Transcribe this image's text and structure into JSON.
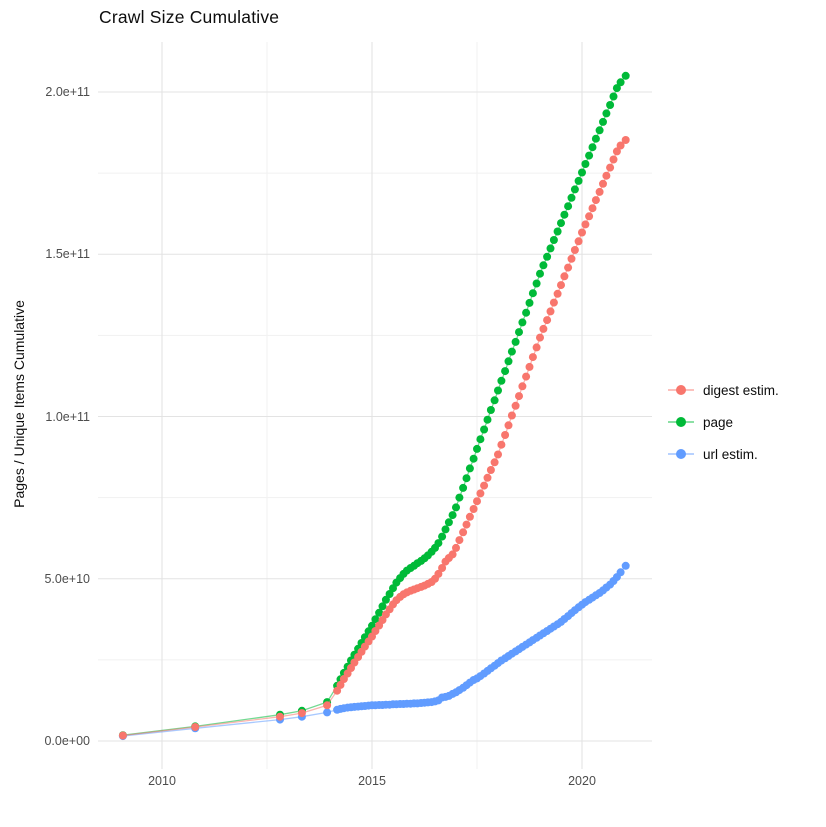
{
  "chart_data": {
    "type": "scatter",
    "title": "Crawl Size Cumulative",
    "xlabel": "",
    "ylabel": "Pages / Unique Items Cumulative",
    "legend_position": "right",
    "grid": true,
    "values_unit": "1e9 pages (value 205 means 2.05e+11)",
    "xlim": [
      2008.5,
      2021.7
    ],
    "ylim_labels": [
      0,
      200000000000.0
    ],
    "x_tick_values": [
      2010,
      2015,
      2020
    ],
    "x_tick_labels": [
      "2010",
      "2015",
      "2020"
    ],
    "x_minor_ticks": [
      2012.5,
      2017.5
    ],
    "y_tick_values": [
      0,
      50,
      100,
      150,
      200
    ],
    "y_tick_labels": [
      "0.0e+00",
      "5.0e+10",
      "1.0e+11",
      "1.5e+11",
      "2.0e+11"
    ],
    "y_minor_ticks": [
      25,
      75,
      125,
      175
    ],
    "series": [
      {
        "name": "digest estim.",
        "color": "#F8766D",
        "points": [
          [
            2009.07,
            1.7
          ],
          [
            2010.79,
            4.3
          ],
          [
            2012.81,
            7.5
          ],
          [
            2013.33,
            8.6
          ],
          [
            2013.93,
            11.0
          ],
          [
            2014.17,
            15.5
          ],
          [
            2014.25,
            17.3
          ],
          [
            2014.33,
            19.1
          ],
          [
            2014.42,
            20.8
          ],
          [
            2014.5,
            22.5
          ],
          [
            2014.58,
            24.2
          ],
          [
            2014.67,
            25.9
          ],
          [
            2014.75,
            27.5
          ],
          [
            2014.83,
            29.1
          ],
          [
            2014.92,
            30.7
          ],
          [
            2015.0,
            32.2
          ],
          [
            2015.08,
            33.9
          ],
          [
            2015.17,
            35.6
          ],
          [
            2015.25,
            37.3
          ],
          [
            2015.33,
            39.0
          ],
          [
            2015.42,
            40.6
          ],
          [
            2015.5,
            42.1
          ],
          [
            2015.58,
            43.4
          ],
          [
            2015.67,
            44.4
          ],
          [
            2015.75,
            45.2
          ],
          [
            2015.83,
            45.8
          ],
          [
            2015.92,
            46.3
          ],
          [
            2016.0,
            46.7
          ],
          [
            2016.08,
            47.1
          ],
          [
            2016.17,
            47.5
          ],
          [
            2016.25,
            47.9
          ],
          [
            2016.33,
            48.4
          ],
          [
            2016.42,
            49.0
          ],
          [
            2016.5,
            50.0
          ],
          [
            2016.58,
            51.5
          ],
          [
            2016.67,
            53.3
          ],
          [
            2016.75,
            55.3
          ],
          [
            2016.83,
            56.4
          ],
          [
            2016.92,
            57.5
          ],
          [
            2017.0,
            59.5
          ],
          [
            2017.08,
            61.9
          ],
          [
            2017.17,
            64.3
          ],
          [
            2017.25,
            66.7
          ],
          [
            2017.33,
            69.1
          ],
          [
            2017.42,
            71.5
          ],
          [
            2017.5,
            73.9
          ],
          [
            2017.58,
            76.3
          ],
          [
            2017.67,
            78.7
          ],
          [
            2017.75,
            81.1
          ],
          [
            2017.83,
            83.5
          ],
          [
            2017.92,
            85.9
          ],
          [
            2018.0,
            88.3
          ],
          [
            2018.08,
            91.3
          ],
          [
            2018.17,
            94.3
          ],
          [
            2018.25,
            97.3
          ],
          [
            2018.33,
            100.3
          ],
          [
            2018.42,
            103.3
          ],
          [
            2018.5,
            106.3
          ],
          [
            2018.58,
            109.3
          ],
          [
            2018.67,
            112.3
          ],
          [
            2018.75,
            115.3
          ],
          [
            2018.83,
            118.3
          ],
          [
            2018.92,
            121.3
          ],
          [
            2019.0,
            124.3
          ],
          [
            2019.08,
            127.0
          ],
          [
            2019.17,
            129.7
          ],
          [
            2019.25,
            132.4
          ],
          [
            2019.33,
            135.1
          ],
          [
            2019.42,
            137.8
          ],
          [
            2019.5,
            140.5
          ],
          [
            2019.58,
            143.2
          ],
          [
            2019.67,
            145.9
          ],
          [
            2019.75,
            148.6
          ],
          [
            2019.83,
            151.3
          ],
          [
            2019.92,
            154.0
          ],
          [
            2020.0,
            156.7
          ],
          [
            2020.08,
            159.2
          ],
          [
            2020.17,
            161.7
          ],
          [
            2020.25,
            164.2
          ],
          [
            2020.33,
            166.7
          ],
          [
            2020.42,
            169.2
          ],
          [
            2020.5,
            171.7
          ],
          [
            2020.58,
            174.2
          ],
          [
            2020.67,
            176.7
          ],
          [
            2020.75,
            179.2
          ],
          [
            2020.83,
            181.7
          ],
          [
            2020.92,
            183.5
          ],
          [
            2021.04,
            185.2
          ]
        ]
      },
      {
        "name": "page",
        "color": "#00BA38",
        "points": [
          [
            2009.07,
            1.8
          ],
          [
            2010.79,
            4.5
          ],
          [
            2012.81,
            8.1
          ],
          [
            2013.33,
            9.3
          ],
          [
            2013.93,
            12.0
          ],
          [
            2014.17,
            17.0
          ],
          [
            2014.25,
            19.0
          ],
          [
            2014.33,
            21.0
          ],
          [
            2014.42,
            22.9
          ],
          [
            2014.5,
            24.8
          ],
          [
            2014.58,
            26.6
          ],
          [
            2014.67,
            28.4
          ],
          [
            2014.75,
            30.2
          ],
          [
            2014.83,
            32.0
          ],
          [
            2014.92,
            33.8
          ],
          [
            2015.0,
            35.5
          ],
          [
            2015.08,
            37.5
          ],
          [
            2015.17,
            39.5
          ],
          [
            2015.25,
            41.5
          ],
          [
            2015.33,
            43.5
          ],
          [
            2015.42,
            45.3
          ],
          [
            2015.5,
            47.1
          ],
          [
            2015.58,
            48.8
          ],
          [
            2015.67,
            50.2
          ],
          [
            2015.75,
            51.5
          ],
          [
            2015.83,
            52.5
          ],
          [
            2015.92,
            53.3
          ],
          [
            2016.0,
            54.0
          ],
          [
            2016.08,
            54.8
          ],
          [
            2016.17,
            55.5
          ],
          [
            2016.25,
            56.3
          ],
          [
            2016.33,
            57.2
          ],
          [
            2016.42,
            58.3
          ],
          [
            2016.5,
            59.5
          ],
          [
            2016.58,
            61.0
          ],
          [
            2016.67,
            63.0
          ],
          [
            2016.75,
            65.2
          ],
          [
            2016.83,
            67.4
          ],
          [
            2016.92,
            69.6
          ],
          [
            2017.0,
            72.0
          ],
          [
            2017.08,
            75.0
          ],
          [
            2017.17,
            78.0
          ],
          [
            2017.25,
            81.0
          ],
          [
            2017.33,
            84.0
          ],
          [
            2017.42,
            87.0
          ],
          [
            2017.5,
            90.0
          ],
          [
            2017.58,
            93.0
          ],
          [
            2017.67,
            96.0
          ],
          [
            2017.75,
            99.0
          ],
          [
            2017.83,
            102.0
          ],
          [
            2017.92,
            105.0
          ],
          [
            2018.0,
            108.0
          ],
          [
            2018.08,
            111.0
          ],
          [
            2018.17,
            114.0
          ],
          [
            2018.25,
            117.0
          ],
          [
            2018.33,
            120.0
          ],
          [
            2018.42,
            123.0
          ],
          [
            2018.5,
            126.0
          ],
          [
            2018.58,
            129.0
          ],
          [
            2018.67,
            132.0
          ],
          [
            2018.75,
            135.0
          ],
          [
            2018.83,
            138.0
          ],
          [
            2018.92,
            141.0
          ],
          [
            2019.0,
            144.0
          ],
          [
            2019.08,
            146.6
          ],
          [
            2019.17,
            149.2
          ],
          [
            2019.25,
            151.8
          ],
          [
            2019.33,
            154.4
          ],
          [
            2019.42,
            157.0
          ],
          [
            2019.5,
            159.6
          ],
          [
            2019.58,
            162.2
          ],
          [
            2019.67,
            164.8
          ],
          [
            2019.75,
            167.4
          ],
          [
            2019.83,
            170.0
          ],
          [
            2019.92,
            172.6
          ],
          [
            2020.0,
            175.2
          ],
          [
            2020.08,
            177.8
          ],
          [
            2020.17,
            180.4
          ],
          [
            2020.25,
            183.0
          ],
          [
            2020.33,
            185.6
          ],
          [
            2020.42,
            188.2
          ],
          [
            2020.5,
            190.8
          ],
          [
            2020.58,
            193.4
          ],
          [
            2020.67,
            196.0
          ],
          [
            2020.75,
            198.6
          ],
          [
            2020.83,
            201.2
          ],
          [
            2020.92,
            203.0
          ],
          [
            2021.04,
            205.0
          ]
        ]
      },
      {
        "name": "url estim.",
        "color": "#619CFF",
        "points": [
          [
            2009.07,
            1.5
          ],
          [
            2010.79,
            3.9
          ],
          [
            2012.81,
            6.6
          ],
          [
            2013.33,
            7.5
          ],
          [
            2013.93,
            8.8
          ],
          [
            2014.17,
            9.6
          ],
          [
            2014.25,
            9.9
          ],
          [
            2014.33,
            10.1
          ],
          [
            2014.42,
            10.3
          ],
          [
            2014.5,
            10.4
          ],
          [
            2014.58,
            10.5
          ],
          [
            2014.67,
            10.6
          ],
          [
            2014.75,
            10.7
          ],
          [
            2014.83,
            10.8
          ],
          [
            2014.92,
            10.9
          ],
          [
            2015.0,
            11.0
          ],
          [
            2015.08,
            11.0
          ],
          [
            2015.17,
            11.1
          ],
          [
            2015.25,
            11.1
          ],
          [
            2015.33,
            11.2
          ],
          [
            2015.42,
            11.2
          ],
          [
            2015.5,
            11.3
          ],
          [
            2015.58,
            11.3
          ],
          [
            2015.67,
            11.4
          ],
          [
            2015.75,
            11.4
          ],
          [
            2015.83,
            11.5
          ],
          [
            2015.92,
            11.5
          ],
          [
            2016.0,
            11.6
          ],
          [
            2016.08,
            11.6
          ],
          [
            2016.17,
            11.7
          ],
          [
            2016.25,
            11.8
          ],
          [
            2016.33,
            11.9
          ],
          [
            2016.42,
            12.0
          ],
          [
            2016.5,
            12.2
          ],
          [
            2016.58,
            12.5
          ],
          [
            2016.67,
            13.4
          ],
          [
            2016.75,
            13.6
          ],
          [
            2016.83,
            13.9
          ],
          [
            2016.92,
            14.5
          ],
          [
            2017.0,
            15.0
          ],
          [
            2017.08,
            15.7
          ],
          [
            2017.17,
            16.4
          ],
          [
            2017.25,
            17.2
          ],
          [
            2017.33,
            18.0
          ],
          [
            2017.42,
            18.8
          ],
          [
            2017.5,
            19.3
          ],
          [
            2017.58,
            20.0
          ],
          [
            2017.67,
            20.8
          ],
          [
            2017.75,
            21.6
          ],
          [
            2017.83,
            22.4
          ],
          [
            2017.92,
            23.2
          ],
          [
            2018.0,
            24.0
          ],
          [
            2018.08,
            24.8
          ],
          [
            2018.17,
            25.5
          ],
          [
            2018.25,
            26.2
          ],
          [
            2018.33,
            26.9
          ],
          [
            2018.42,
            27.6
          ],
          [
            2018.5,
            28.3
          ],
          [
            2018.58,
            29.0
          ],
          [
            2018.67,
            29.7
          ],
          [
            2018.75,
            30.4
          ],
          [
            2018.83,
            31.1
          ],
          [
            2018.92,
            31.8
          ],
          [
            2019.0,
            32.5
          ],
          [
            2019.08,
            33.2
          ],
          [
            2019.17,
            33.9
          ],
          [
            2019.25,
            34.6
          ],
          [
            2019.33,
            35.3
          ],
          [
            2019.42,
            36.0
          ],
          [
            2019.5,
            36.7
          ],
          [
            2019.58,
            37.6
          ],
          [
            2019.67,
            38.5
          ],
          [
            2019.75,
            39.4
          ],
          [
            2019.83,
            40.3
          ],
          [
            2019.92,
            41.2
          ],
          [
            2020.0,
            42.0
          ],
          [
            2020.08,
            42.8
          ],
          [
            2020.17,
            43.5
          ],
          [
            2020.25,
            44.2
          ],
          [
            2020.33,
            44.9
          ],
          [
            2020.42,
            45.6
          ],
          [
            2020.5,
            46.4
          ],
          [
            2020.58,
            47.3
          ],
          [
            2020.67,
            48.2
          ],
          [
            2020.75,
            49.3
          ],
          [
            2020.83,
            50.5
          ],
          [
            2020.92,
            52.0
          ],
          [
            2021.04,
            54.0
          ]
        ]
      }
    ]
  }
}
